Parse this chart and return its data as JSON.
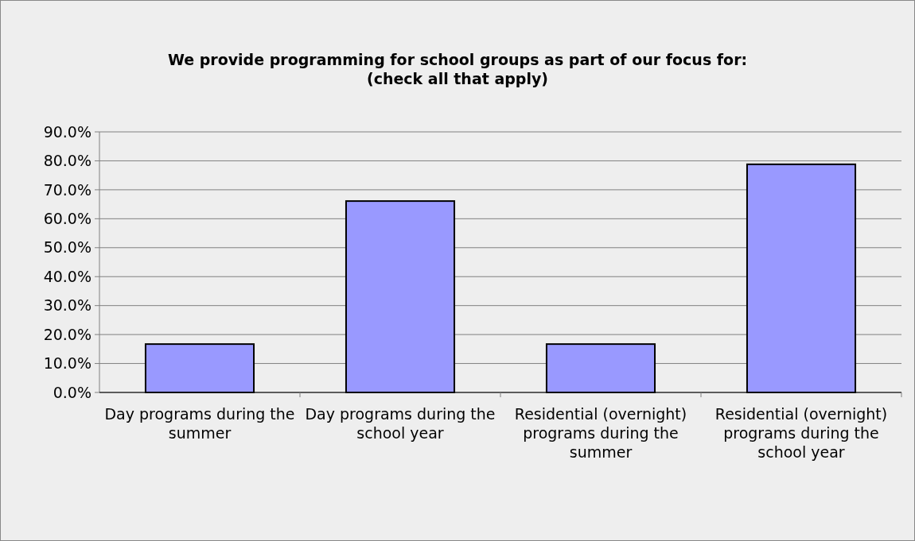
{
  "chart_data": {
    "type": "bar",
    "title": "We provide programming for school groups as part of our focus for: (check all that apply)",
    "categories": [
      "Day programs during the summer",
      "Day programs during the school year",
      "Residential (overnight) programs during the summer",
      "Residential (overnight) programs during the school year"
    ],
    "values": [
      16.7,
      66.1,
      16.7,
      78.8
    ],
    "color": "#9999ff",
    "ylim": [
      0,
      90
    ],
    "yticks": [
      {
        "value": 0,
        "label": "0.0%"
      },
      {
        "value": 10,
        "label": "10.0%"
      },
      {
        "value": 20,
        "label": "20.0%"
      },
      {
        "value": 30,
        "label": "30.0%"
      },
      {
        "value": 40,
        "label": "40.0%"
      },
      {
        "value": 50,
        "label": "50.0%"
      },
      {
        "value": 60,
        "label": "60.0%"
      },
      {
        "value": 70,
        "label": "70.0%"
      },
      {
        "value": 80,
        "label": "80.0%"
      },
      {
        "value": 90,
        "label": "90.0%"
      }
    ],
    "grid": "y"
  }
}
